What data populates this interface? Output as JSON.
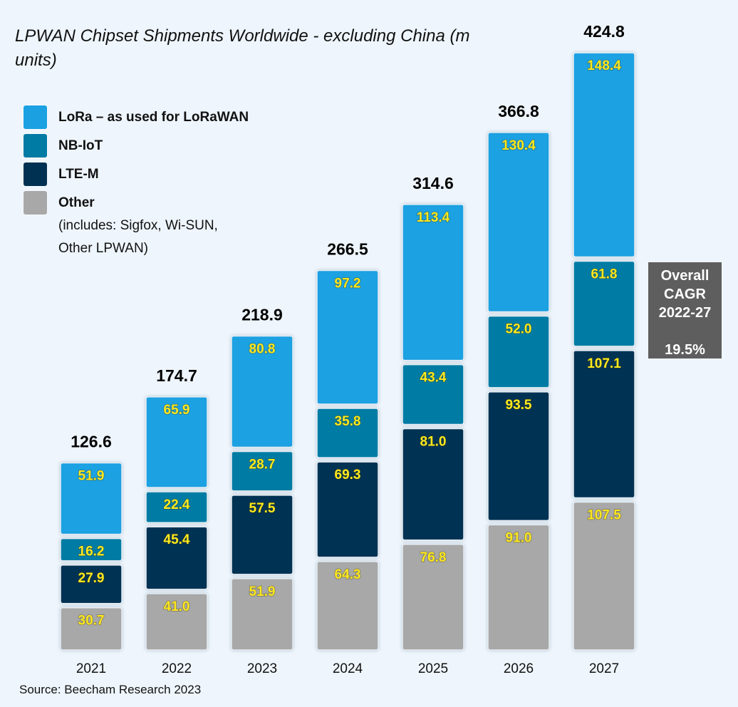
{
  "chart_data": {
    "type": "bar",
    "stacked": true,
    "title": "LPWAN Chipset Shipments Worldwide - excluding China (m units)",
    "categories": [
      "2021",
      "2022",
      "2023",
      "2024",
      "2025",
      "2026",
      "2027"
    ],
    "series": [
      {
        "name": "Other",
        "note": "(includes: Sigfox, Wi-SUN, Other LPWAN)",
        "color": "#a8a8a8",
        "values": [
          30.7,
          41.0,
          51.9,
          64.3,
          76.8,
          91.0,
          107.5
        ]
      },
      {
        "name": "LTE-M",
        "color": "#003152",
        "values": [
          27.9,
          45.4,
          57.5,
          69.3,
          81.0,
          93.5,
          107.1
        ]
      },
      {
        "name": "NB-IoT",
        "color": "#007ba4",
        "values": [
          16.2,
          22.4,
          28.7,
          35.8,
          43.4,
          52.0,
          61.8
        ]
      },
      {
        "name": "LoRa – as used for LoRaWAN",
        "color": "#1ba1e2",
        "values": [
          51.9,
          65.9,
          80.8,
          97.2,
          113.4,
          130.4,
          148.4
        ]
      }
    ],
    "totals": [
      "126.6",
      "174.7",
      "218.9",
      "266.5",
      "314.6",
      "366.8",
      "424.8"
    ],
    "legend_position": "top-left",
    "grid": false,
    "label_color": "#ffe81f"
  },
  "cagr": {
    "line1": "Overall",
    "line2": "CAGR",
    "line3": "2022-27",
    "value": "19.5%"
  },
  "source": "Source: Beecham Research 2023"
}
